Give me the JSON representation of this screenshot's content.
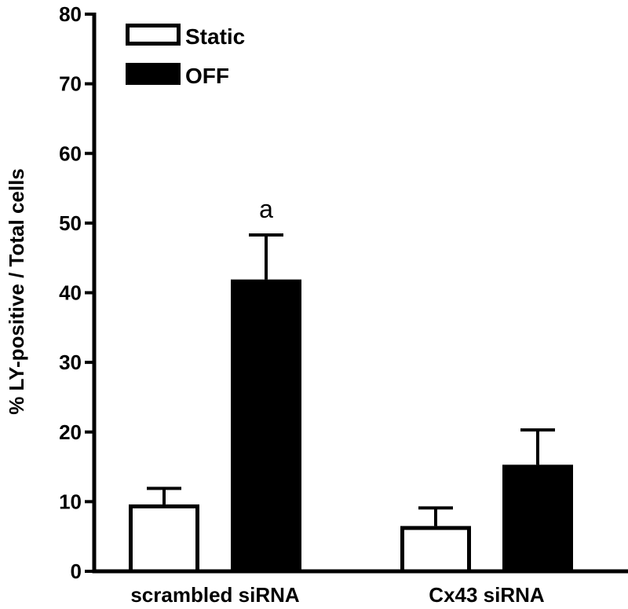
{
  "chart_data": {
    "type": "bar",
    "title": "",
    "xlabel": "",
    "ylabel": "% LY-positive / Total cells",
    "ylim": [
      0,
      80
    ],
    "yticks": [
      0,
      10,
      20,
      30,
      40,
      50,
      60,
      70,
      80
    ],
    "categories": [
      "scrambled siRNA",
      "Cx43 siRNA"
    ],
    "series": [
      {
        "name": "Static",
        "fill": "#ffffff",
        "values": [
          9.6,
          6.5
        ],
        "errors": [
          2.3,
          2.6
        ]
      },
      {
        "name": "OFF",
        "fill": "#000000",
        "values": [
          41.9,
          15.3
        ],
        "errors": [
          6.4,
          5.0
        ]
      }
    ],
    "annotations": [
      {
        "text": "a",
        "series": 1,
        "category": 0
      }
    ],
    "legend_position": "top-left",
    "grid": false
  }
}
